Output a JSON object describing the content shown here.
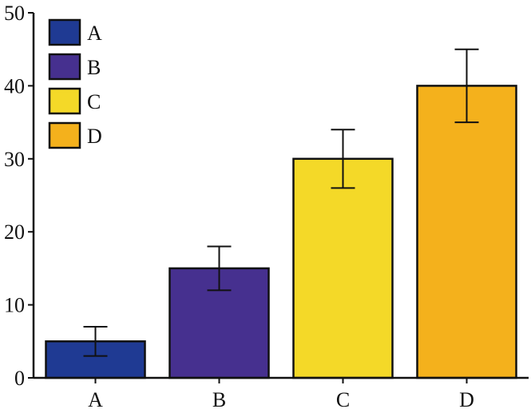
{
  "chart_data": {
    "type": "bar",
    "categories": [
      "A",
      "B",
      "C",
      "D"
    ],
    "values": [
      5,
      15,
      30,
      40
    ],
    "errors": [
      2,
      3,
      4,
      5
    ],
    "colors": [
      "#1f3a93",
      "#46308f",
      "#f4d928",
      "#f4b11c"
    ],
    "ylim": [
      0,
      50
    ],
    "yticks": [
      0,
      10,
      20,
      30,
      40,
      50
    ],
    "ytick_labels": [
      "0",
      "10",
      "20",
      "30",
      "40",
      "50"
    ],
    "legend": {
      "placement": "top-left",
      "entries": [
        "A",
        "B",
        "C",
        "D"
      ]
    },
    "title": "",
    "xlabel": "",
    "ylabel": "",
    "grid": false
  }
}
